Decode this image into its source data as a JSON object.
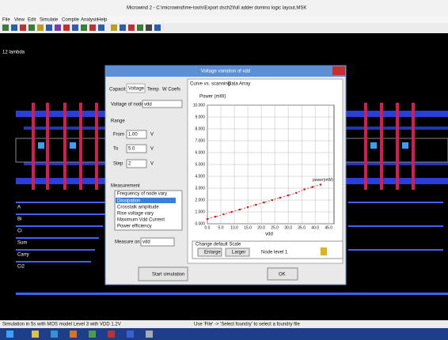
{
  "window": {
    "title": "Microwind 2 - C:\\microwind\\me-tools\\Export dsch2\\full adder domino logic layout.MSK",
    "menu": [
      "File",
      "View",
      "Edit",
      "Simulate",
      "Compile",
      "Analysis",
      "Help"
    ],
    "status": "Simulation in 5s with MOS model Level 3 with VDD 1.2V",
    "status_hint": "Use 'File' -> 'Select foundry' to select a foundry file"
  },
  "layout": {
    "labels": [
      "A",
      "Bi",
      "Ci",
      "Sum",
      "Carry",
      "Ci2"
    ],
    "corner_label": "12 lambda"
  },
  "dialog": {
    "title": "Voltage variation of vdd",
    "tabs": [
      "Capacit",
      "Voltage",
      "Temp",
      "W Coefs"
    ],
    "chart_tabs": [
      "Curve vs. scanning",
      "Data Array"
    ],
    "node_label": "Voltage of node",
    "node_value": "vdd",
    "range_label": "Range",
    "from_label": "From",
    "from_value": "1.00",
    "to_label": "To",
    "to_value": "5.0",
    "step_label": "Step",
    "step_value": "2",
    "unit": "V",
    "measurement_label": "Measurement",
    "measurements": [
      "Frequency of node vary",
      "Dissipation",
      "Crosstalk amplitude",
      "Rise voltage vary",
      "Maximum Vdd Current",
      "Power efficiency"
    ],
    "measure_on_label": "Measure on",
    "measure_on_value": "vdd",
    "scale_label": "Change default Scale",
    "enlarge": "Enlarge",
    "larger": "Larger",
    "node_level": "Node level 1",
    "start": "Start simulation",
    "ok": "OK",
    "chart": {
      "type": "scatter",
      "ylabel": "Power (mW)",
      "xlabel": "vdd",
      "series_label": "power(mW)",
      "color": "#d02020",
      "x": [
        0,
        3,
        6,
        9,
        12,
        15,
        18,
        21,
        24,
        27,
        30,
        33,
        36,
        39,
        42
      ],
      "values": [
        0.4,
        0.6,
        0.8,
        1.0,
        1.2,
        1.4,
        1.6,
        1.8,
        2.0,
        2.2,
        2.4,
        2.6,
        2.9,
        3.1,
        3.3
      ],
      "xlim": [
        0,
        47
      ],
      "ylim": [
        0,
        10
      ],
      "xticks": [
        {
          "value": 0,
          "label": "0.0"
        },
        {
          "value": 5,
          "label": "5.0"
        },
        {
          "value": 10,
          "label": "10.0"
        },
        {
          "value": 15,
          "label": "15.0"
        },
        {
          "value": 20,
          "label": "20.0"
        },
        {
          "value": 25,
          "label": "25.0"
        },
        {
          "value": 30,
          "label": "30.0"
        },
        {
          "value": 35,
          "label": "35.0"
        },
        {
          "value": 40,
          "label": "40.0"
        },
        {
          "value": 45,
          "label": "45.0"
        }
      ],
      "yticks": [
        {
          "value": 0,
          "label": "0.000"
        },
        {
          "value": 1,
          "label": "1.000"
        },
        {
          "value": 2,
          "label": "2.000"
        },
        {
          "value": 3,
          "label": "3.000"
        },
        {
          "value": 4,
          "label": "4.000"
        },
        {
          "value": 5,
          "label": "5.000"
        },
        {
          "value": 6,
          "label": "6.000"
        },
        {
          "value": 7,
          "label": "7.000"
        },
        {
          "value": 8,
          "label": "8.000"
        },
        {
          "value": 9,
          "label": "9.000"
        },
        {
          "value": 10,
          "label": "10.000"
        }
      ],
      "grid": true
    }
  }
}
